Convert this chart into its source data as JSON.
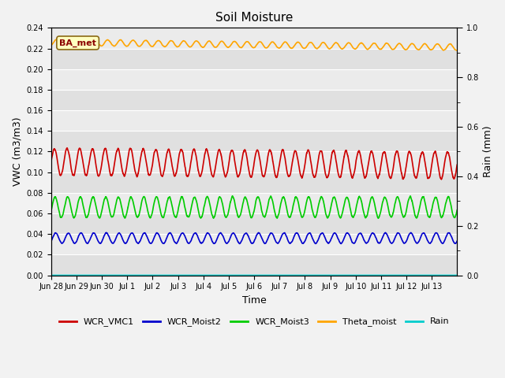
{
  "title": "Soil Moisture",
  "xlabel": "Time",
  "ylabel_left": "VWC (m3/m3)",
  "ylabel_right": "Rain (mm)",
  "ylim_left": [
    0.0,
    0.24
  ],
  "ylim_right": [
    0.0,
    1.0
  ],
  "yticks_left": [
    0.0,
    0.02,
    0.04,
    0.06,
    0.08,
    0.1,
    0.12,
    0.14,
    0.16,
    0.18,
    0.2,
    0.22,
    0.24
  ],
  "yticks_right": [
    0.0,
    0.2,
    0.4,
    0.6,
    0.8,
    1.0
  ],
  "xtick_labels": [
    "Jun 28",
    "Jun 29",
    "Jun 30",
    "Jul 1",
    "Jul 2",
    "Jul 3",
    "Jul 4",
    "Jul 5",
    "Jul 6",
    "Jul 7",
    "Jul 8",
    "Jul 9",
    "Jul 10",
    "Jul 11",
    "Jul 12",
    "Jul 13"
  ],
  "n_days": 16,
  "annotation_text": "BA_met",
  "annotation_color": "#8B0000",
  "annotation_bg": "#FFFFC0",
  "annotation_border": "#8B6914",
  "series": {
    "WCR_VMC1": {
      "color": "#CC0000",
      "base": 0.11,
      "amp": 0.013,
      "period": 0.5,
      "phase": 0.0,
      "trend": -0.0002
    },
    "WCR_Moist2": {
      "color": "#0000CC",
      "base": 0.036,
      "amp": 0.005,
      "period": 0.5,
      "phase": 0.1,
      "trend": 0.0
    },
    "WCR_Moist3": {
      "color": "#00CC00",
      "base": 0.066,
      "amp": 0.01,
      "period": 0.5,
      "phase": 0.05,
      "trend": 0.0
    },
    "Theta_moist": {
      "color": "#FFA500",
      "base": 0.226,
      "amp": 0.003,
      "period": 0.5,
      "phase": 0.2,
      "trend": -0.0003
    },
    "Rain": {
      "color": "#00CCCC",
      "base": 0.0,
      "amp": 0.0,
      "period": 0.5,
      "phase": 0.0,
      "trend": 0.0
    }
  },
  "legend_entries": [
    "WCR_VMC1",
    "WCR_Moist2",
    "WCR_Moist3",
    "Theta_moist",
    "Rain"
  ],
  "legend_colors": [
    "#CC0000",
    "#0000CC",
    "#00CC00",
    "#FFA500",
    "#00CCCC"
  ],
  "fig_bg_color": "#F2F2F2",
  "ax_bg_color": "#E8E8E8",
  "grid_color": "#FFFFFF",
  "band_colors": [
    "#E0E0E0",
    "#EBEBEB"
  ]
}
